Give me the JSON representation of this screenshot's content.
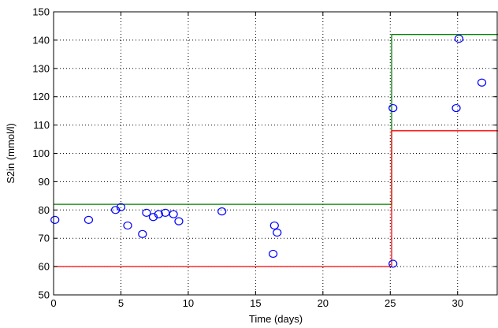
{
  "chart_data": {
    "type": "scatter",
    "xlabel": "Time (days)",
    "ylabel": "S2in (mmol/l)",
    "xlim": [
      0,
      33
    ],
    "ylim": [
      50,
      150
    ],
    "xticks": [
      0,
      5,
      10,
      15,
      20,
      25,
      30
    ],
    "yticks": [
      50,
      60,
      70,
      80,
      90,
      100,
      110,
      120,
      130,
      140,
      150
    ],
    "grid": true,
    "series": [
      {
        "type": "scatter",
        "marker": "circle-open",
        "color": "#0000ff",
        "points": [
          [
            0.1,
            76.5
          ],
          [
            2.6,
            76.5
          ],
          [
            4.6,
            80.0
          ],
          [
            5.0,
            81.0
          ],
          [
            5.5,
            74.5
          ],
          [
            6.6,
            71.5
          ],
          [
            6.9,
            79.0
          ],
          [
            7.4,
            77.5
          ],
          [
            7.8,
            78.5
          ],
          [
            8.3,
            79.0
          ],
          [
            8.9,
            78.5
          ],
          [
            9.3,
            76.0
          ],
          [
            12.5,
            79.5
          ],
          [
            16.3,
            64.5
          ],
          [
            16.4,
            74.5
          ],
          [
            16.6,
            72.0
          ],
          [
            25.2,
            61.0
          ],
          [
            25.2,
            116.0
          ],
          [
            29.9,
            116.0
          ],
          [
            30.1,
            140.5
          ],
          [
            31.8,
            125.0
          ]
        ]
      },
      {
        "type": "step",
        "color": "#008000",
        "points": [
          [
            0,
            82
          ],
          [
            25.1,
            82
          ],
          [
            25.1,
            142
          ],
          [
            33,
            142
          ]
        ]
      },
      {
        "type": "step",
        "color": "#ff0000",
        "points": [
          [
            0,
            60
          ],
          [
            25.1,
            60
          ],
          [
            25.1,
            108
          ],
          [
            33,
            108
          ]
        ]
      }
    ]
  }
}
